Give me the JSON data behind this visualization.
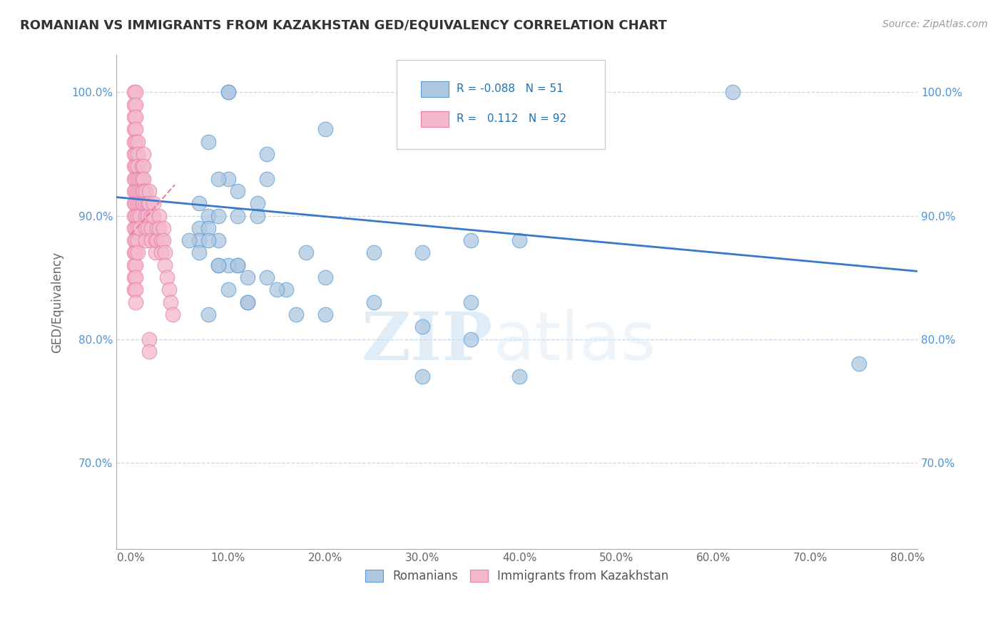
{
  "title": "ROMANIAN VS IMMIGRANTS FROM KAZAKHSTAN GED/EQUIVALENCY CORRELATION CHART",
  "source": "Source: ZipAtlas.com",
  "ylabel": "GED/Equivalency",
  "x_tick_labels": [
    "0.0%",
    "",
    "10.0%",
    "",
    "20.0%",
    "",
    "30.0%",
    "",
    "40.0%",
    "",
    "50.0%",
    "",
    "60.0%",
    "",
    "70.0%",
    "",
    "80.0%"
  ],
  "x_tick_values": [
    0,
    5,
    10,
    15,
    20,
    25,
    30,
    35,
    40,
    45,
    50,
    55,
    60,
    65,
    70,
    75,
    80
  ],
  "y_tick_labels": [
    "70.0%",
    "80.0%",
    "90.0%",
    "100.0%"
  ],
  "y_tick_values": [
    70,
    80,
    90,
    100
  ],
  "xlim": [
    -1.5,
    81
  ],
  "ylim": [
    63,
    103
  ],
  "legend_blue_r": "-0.088",
  "legend_blue_n": "51",
  "legend_pink_r": "0.112",
  "legend_pink_n": "92",
  "blue_color": "#aec7e0",
  "pink_color": "#f4b8cc",
  "blue_edge_color": "#5b9bd5",
  "pink_edge_color": "#e87da8",
  "blue_trend_color": "#3a78c9",
  "pink_trend_color": "#e87da8",
  "watermark_zip": "ZIP",
  "watermark_atlas": "atlas",
  "blue_scatter_x": [
    10,
    10,
    20,
    8,
    14,
    14,
    10,
    9,
    11,
    13,
    7,
    8,
    9,
    11,
    13,
    7,
    8,
    9,
    7,
    35,
    30,
    25,
    7,
    9,
    11,
    12,
    14,
    16,
    10,
    12,
    62,
    75,
    8,
    17,
    20,
    30,
    35,
    40,
    10,
    15,
    25,
    35,
    9,
    11,
    8,
    6,
    18,
    20,
    12,
    30,
    40
  ],
  "blue_scatter_y": [
    100,
    100,
    97,
    96,
    95,
    93,
    93,
    93,
    92,
    91,
    91,
    90,
    90,
    90,
    90,
    89,
    89,
    88,
    88,
    88,
    87,
    87,
    87,
    86,
    86,
    85,
    85,
    84,
    84,
    83,
    100,
    78,
    82,
    82,
    82,
    81,
    80,
    88,
    86,
    84,
    83,
    83,
    86,
    86,
    88,
    88,
    87,
    85,
    83,
    77,
    77
  ],
  "pink_scatter_x": [
    0.3,
    0.3,
    0.3,
    0.3,
    0.3,
    0.3,
    0.3,
    0.3,
    0.3,
    0.3,
    0.3,
    0.3,
    0.3,
    0.3,
    0.3,
    0.3,
    0.3,
    0.5,
    0.5,
    0.5,
    0.5,
    0.5,
    0.5,
    0.5,
    0.5,
    0.5,
    0.5,
    0.5,
    0.5,
    0.5,
    0.5,
    0.5,
    0.5,
    0.5,
    0.5,
    0.7,
    0.7,
    0.7,
    0.7,
    0.7,
    0.7,
    0.7,
    0.7,
    0.7,
    0.7,
    0.9,
    0.9,
    0.9,
    0.9,
    0.9,
    1.1,
    1.1,
    1.1,
    1.1,
    1.3,
    1.3,
    1.3,
    1.3,
    1.3,
    1.5,
    1.5,
    1.5,
    1.5,
    1.5,
    1.7,
    1.7,
    1.7,
    1.9,
    1.9,
    1.9,
    1.9,
    2.1,
    2.1,
    2.1,
    2.3,
    2.3,
    2.5,
    2.5,
    2.7,
    2.7,
    2.9,
    2.9,
    3.1,
    3.1,
    3.3,
    3.3,
    3.5,
    3.5,
    3.7,
    3.9,
    4.1,
    4.3
  ],
  "pink_scatter_y": [
    100,
    99,
    98,
    97,
    96,
    95,
    94,
    93,
    92,
    91,
    90,
    89,
    88,
    87,
    86,
    85,
    84,
    100,
    99,
    98,
    97,
    96,
    95,
    94,
    93,
    92,
    91,
    90,
    89,
    88,
    87,
    86,
    85,
    84,
    83,
    96,
    95,
    94,
    93,
    92,
    91,
    90,
    89,
    88,
    87,
    93,
    92,
    91,
    90,
    89,
    94,
    93,
    92,
    91,
    95,
    94,
    93,
    92,
    91,
    92,
    91,
    90,
    89,
    88,
    91,
    90,
    89,
    92,
    91,
    80,
    79,
    90,
    89,
    88,
    91,
    90,
    88,
    87,
    89,
    88,
    90,
    89,
    88,
    87,
    89,
    88,
    87,
    86,
    85,
    84,
    83,
    82
  ],
  "blue_trend_x0": -1.5,
  "blue_trend_x1": 81,
  "blue_trend_y0": 91.5,
  "blue_trend_y1": 85.5,
  "pink_trend_x0": 0.0,
  "pink_trend_x1": 4.5,
  "pink_trend_y0": 88.5,
  "pink_trend_y1": 92.5
}
